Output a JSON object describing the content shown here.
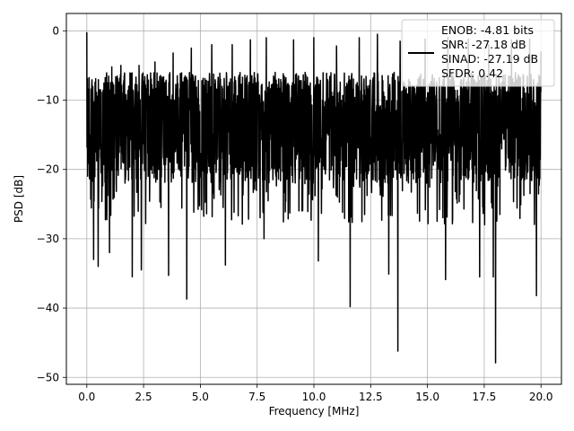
{
  "chart_data": {
    "type": "line",
    "title": "",
    "xlabel": "Frequency [MHz]",
    "ylabel": "PSD [dB]",
    "xlim": [
      -0.9,
      20.9
    ],
    "ylim": [
      -51,
      2.5
    ],
    "xticks": [
      0.0,
      2.5,
      5.0,
      7.5,
      10.0,
      12.5,
      15.0,
      17.5,
      20.0
    ],
    "xtick_labels": [
      "0.0",
      "2.5",
      "5.0",
      "7.5",
      "10.0",
      "12.5",
      "15.0",
      "17.5",
      "20.0"
    ],
    "yticks": [
      0,
      -10,
      -20,
      -30,
      -40,
      -50
    ],
    "ytick_labels": [
      "0",
      "−10",
      "−20",
      "−30",
      "−40",
      "−50"
    ],
    "grid": true,
    "legend_position": "top-right",
    "series": [
      {
        "name": "ENOB: -4.81 bits\nSNR: -27.18 dB\nSINAD: -27.19 dB\nSFDR: 0.42",
        "legend_lines": [
          "ENOB: -4.81 bits",
          "SNR: -27.18 dB",
          "SINAD: -27.19 dB",
          "SFDR: 0.42"
        ],
        "color": "#000000",
        "description_range": [
          0,
          20
        ],
        "peaks": [
          [
            0.0,
            -0.2
          ],
          [
            0.5,
            -5.5
          ],
          [
            1.1,
            -5.2
          ],
          [
            1.5,
            -5.0
          ],
          [
            2.3,
            -5.0
          ],
          [
            3.0,
            -4.5
          ],
          [
            3.8,
            -3.2
          ],
          [
            4.6,
            -2.5
          ],
          [
            5.5,
            -2.0
          ],
          [
            6.4,
            -2.0
          ],
          [
            7.2,
            -1.3
          ],
          [
            7.9,
            -1.0
          ],
          [
            9.1,
            -1.3
          ],
          [
            10.0,
            -1.0
          ],
          [
            11.0,
            -2.2
          ],
          [
            12.0,
            -1.0
          ],
          [
            12.8,
            -0.5
          ],
          [
            13.8,
            -1.5
          ],
          [
            14.9,
            -1.2
          ],
          [
            15.9,
            -1.0
          ],
          [
            16.8,
            -1.2
          ],
          [
            17.7,
            -2.0
          ],
          [
            18.7,
            -1.3
          ],
          [
            19.5,
            -1.2
          ],
          [
            20.0,
            -3.0
          ]
        ],
        "troughs": [
          [
            0.3,
            -33.0
          ],
          [
            0.5,
            -34.0
          ],
          [
            1.0,
            -32.0
          ],
          [
            2.0,
            -35.5
          ],
          [
            2.4,
            -34.5
          ],
          [
            3.6,
            -35.3
          ],
          [
            4.4,
            -38.7
          ],
          [
            6.1,
            -33.8
          ],
          [
            7.8,
            -30.0
          ],
          [
            10.2,
            -33.2
          ],
          [
            11.6,
            -39.8
          ],
          [
            13.3,
            -35.1
          ],
          [
            13.7,
            -46.2
          ],
          [
            15.8,
            -35.9
          ],
          [
            17.3,
            -35.5
          ],
          [
            17.9,
            -35.5
          ],
          [
            18.0,
            -47.9
          ],
          [
            19.8,
            -38.2
          ]
        ],
        "band_upper_db": -6,
        "band_lower_db": -22
      }
    ]
  }
}
